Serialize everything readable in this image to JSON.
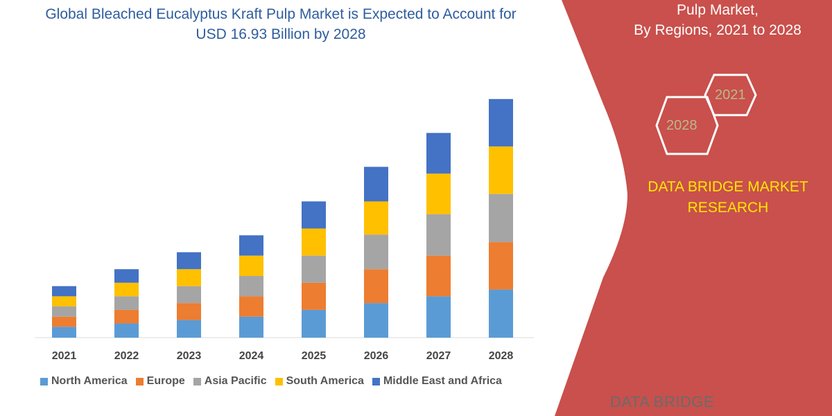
{
  "title": "Global Bleached Eucalyptus Kraft Pulp Market is Expected to Account for USD 16.93 Billion by 2028",
  "side_panel": {
    "title_line1": "Pulp Market,",
    "title_line2": "By Regions, 2021 to 2028",
    "hex_labels": [
      "2021",
      "2028"
    ],
    "brand": "DATA BRIDGE MARKET RESEARCH",
    "logo_text": "DATA BRIDGE",
    "color": "#C9504C"
  },
  "chart_data": {
    "type": "bar",
    "stacked": true,
    "categories": [
      "2021",
      "2022",
      "2023",
      "2024",
      "2025",
      "2026",
      "2027",
      "2028"
    ],
    "series": [
      {
        "name": "North America",
        "color": "#5B9BD5",
        "values": [
          16,
          21,
          26,
          31,
          41,
          51,
          61,
          71
        ]
      },
      {
        "name": "Europe",
        "color": "#ED7D31",
        "values": [
          15,
          20,
          25,
          30,
          40,
          50,
          60,
          70
        ]
      },
      {
        "name": "Asia Pacific",
        "color": "#A5A5A5",
        "values": [
          15,
          20,
          25,
          30,
          40,
          51,
          61,
          71
        ]
      },
      {
        "name": "South America",
        "color": "#FFC000",
        "values": [
          15,
          20,
          25,
          30,
          40,
          49,
          60,
          70
        ]
      },
      {
        "name": "Middle East and Africa",
        "color": "#4472C4",
        "values": [
          15,
          20,
          25,
          30,
          40,
          51,
          60,
          70
        ]
      }
    ],
    "legend": "bottom",
    "grid": false,
    "ylim": [
      0,
      360
    ]
  }
}
